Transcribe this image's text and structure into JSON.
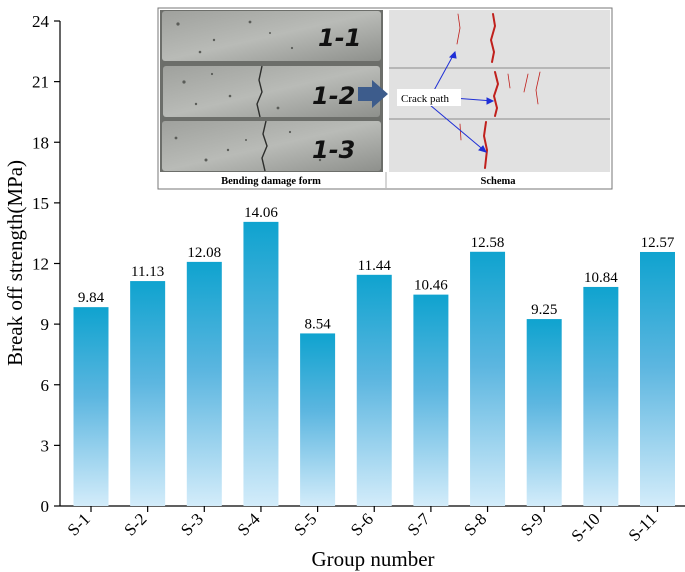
{
  "chart_data": {
    "type": "bar",
    "categories": [
      "S-1",
      "S-2",
      "S-3",
      "S-4",
      "S-5",
      "S-6",
      "S-7",
      "S-8",
      "S-9",
      "S-10",
      "S-11"
    ],
    "values": [
      9.84,
      11.13,
      12.08,
      14.06,
      8.54,
      11.44,
      10.46,
      12.58,
      9.25,
      10.84,
      12.57
    ],
    "value_labels": [
      "9.84",
      "11.13",
      "12.08",
      "14.06",
      "8.54",
      "11.44",
      "10.46",
      "12.58",
      "9.25",
      "10.84",
      "12.57"
    ],
    "xlabel": "Group number",
    "ylabel": "Break off strength(MPa)",
    "ylim": [
      0,
      24
    ],
    "yticks": [
      0,
      3,
      6,
      9,
      12,
      15,
      18,
      21,
      24
    ],
    "grid": false,
    "colors": {
      "bar_top": "#0fa3cf",
      "bar_bottom": "#d3ecfa",
      "arrow": "#3d5c8c",
      "crack": "#c0201c",
      "pointer": "#1f2fd6"
    }
  },
  "inset": {
    "photo_labels": [
      "1-1",
      "1-2",
      "1-3"
    ],
    "left_caption": "Bending damage form",
    "right_caption": "Schema",
    "annotation": "Crack path"
  }
}
